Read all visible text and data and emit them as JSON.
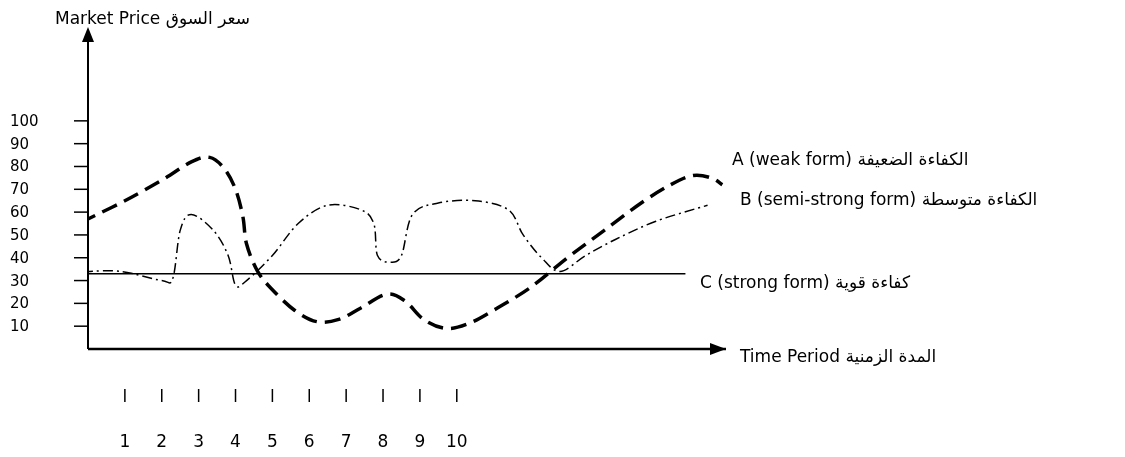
{
  "chart_data": {
    "type": "line",
    "ylabel": "Market Price  سعر السوق",
    "xlabel": "Time Period  المدة الزمنية",
    "xlim": [
      0,
      17.3
    ],
    "ylim": [
      0,
      135
    ],
    "xticks": [
      1,
      2,
      3,
      4,
      5,
      6,
      7,
      8,
      9,
      10
    ],
    "yticks": [
      10,
      20,
      30,
      40,
      50,
      60,
      70,
      80,
      90,
      100
    ],
    "marker": "none",
    "series": [
      {
        "name": "A (weak form)  الكفاءة الضعيفة",
        "color": "#000000",
        "line_style": "dashed",
        "x": [
          0,
          1,
          2,
          2.8,
          3.3,
          3.7,
          4.0,
          4.2,
          4.3,
          4.6,
          5.0,
          5.6,
          6.2,
          6.8,
          7.4,
          8.1,
          8.6,
          9.1,
          9.7,
          10.3,
          11,
          12,
          13,
          14,
          15,
          15.8,
          16.4,
          16.9,
          17.2
        ],
        "values": [
          57,
          65,
          74,
          82,
          84,
          79,
          70,
          58,
          46,
          34,
          26,
          17,
          12,
          13,
          18,
          24,
          21,
          13,
          9,
          11,
          17,
          27,
          40,
          52,
          64,
          72,
          76,
          75,
          72
        ]
      },
      {
        "name": "B (semi-strong form)  الكفاءة متوسطة",
        "color": "#000000",
        "line_style": "dashdot",
        "x": [
          0,
          0.9,
          2.0,
          2.3,
          2.5,
          2.8,
          3.4,
          3.8,
          4.0,
          4.3,
          5.0,
          5.7,
          6.5,
          7.4,
          7.75,
          7.85,
          8.2,
          8.5,
          8.8,
          9.5,
          10.5,
          11.4,
          11.8,
          12.3,
          12.8,
          13.5,
          14.3,
          15.4,
          16.8
        ],
        "values": [
          34,
          34,
          30,
          31,
          52,
          59,
          52,
          41,
          28,
          30,
          41,
          55,
          63,
          61,
          55,
          41,
          38,
          41,
          59,
          64,
          65,
          61,
          50,
          40,
          34,
          41,
          48,
          56,
          63
        ]
      },
      {
        "name": "C (strong form)  كفاءة قوية",
        "color": "#000000",
        "line_style": "solid",
        "x": [
          0,
          16.2
        ],
        "values": [
          33,
          33
        ]
      }
    ]
  }
}
